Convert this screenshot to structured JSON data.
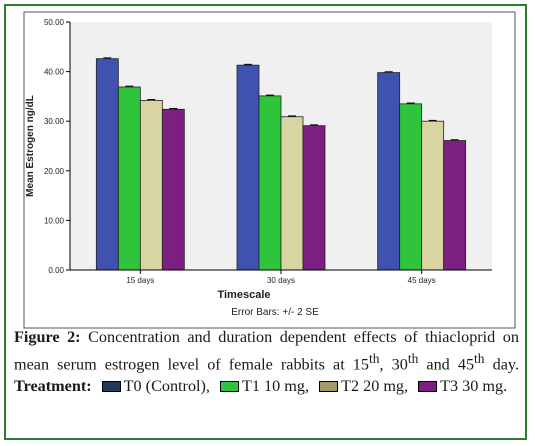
{
  "chart_data": {
    "type": "bar",
    "categories": [
      "15 days",
      "30 days",
      "45 days"
    ],
    "series": [
      {
        "name": "T0",
        "color": "#3f52b0",
        "values": [
          42.6,
          41.3,
          39.8
        ]
      },
      {
        "name": "T1 10 mg",
        "color": "#2ec53d",
        "values": [
          36.9,
          35.1,
          33.5
        ]
      },
      {
        "name": "T2 20 mg",
        "color": "#d9d5a2",
        "values": [
          34.2,
          30.9,
          30.0
        ]
      },
      {
        "name": "T3 30 mg",
        "color": "#7b2080",
        "values": [
          32.4,
          29.1,
          26.1
        ]
      }
    ],
    "ylim": [
      0,
      50
    ],
    "yticks": [
      "0.00",
      "10.00",
      "20.00",
      "30.00",
      "40.00",
      "50.00"
    ],
    "ylabel": "Mean Estrogen ng/dL",
    "xlabel": "Timescale",
    "error_bar_note": "Error Bars: +/- 2 SE",
    "plot_background": "#f0f0f0"
  },
  "caption": {
    "figure_label": "Figure 2:",
    "text_main": "Concentration and duration dependent effects of thiacloprid on mean serum estrogen level of female rabbits at 15",
    "sup1": "th",
    "text_2": ", 30",
    "sup2": "th",
    "text_3": " and 45",
    "sup3": "th",
    "text_4": " day. ",
    "treatment_label": "Treatment:",
    "legend": [
      {
        "label": "T0 (Control),",
        "color": "#1f3a5a"
      },
      {
        "label": "T1 10 mg,",
        "color": "#2ec53d"
      },
      {
        "label": "T2 20 mg,",
        "color": "#a39b6b"
      },
      {
        "label": "T3 30 mg.",
        "color": "#7b2080"
      }
    ]
  }
}
